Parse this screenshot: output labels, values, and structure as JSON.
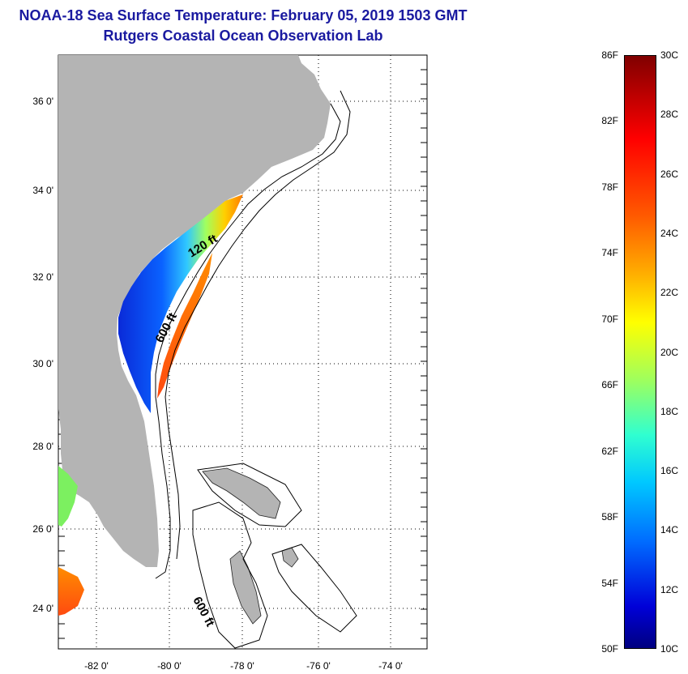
{
  "header": {
    "title_line1": "NOAA-18 Sea Surface Temperature:  February 05, 2019 1503 GMT",
    "title_line2": "Rutgers Coastal Ocean Observation Lab"
  },
  "map": {
    "lat_labels": [
      "36 0'",
      "34 0'",
      "32 0'",
      "30 0'",
      "28 0'",
      "26 0'",
      "24 0'"
    ],
    "lon_labels": [
      "-82 0'",
      "-80 0'",
      "-78 0'",
      "-76 0'",
      "-74 0'"
    ],
    "contour_labels": [
      "120 ft",
      "600 ft",
      "600 ft"
    ]
  },
  "colorbar": {
    "fahrenheit_labels": [
      "86F",
      "82F",
      "78F",
      "74F",
      "70F",
      "66F",
      "62F",
      "58F",
      "54F",
      "50F"
    ],
    "celsius_labels": [
      "30C",
      "28C",
      "26C",
      "24C",
      "22C",
      "20C",
      "18C",
      "16C",
      "14C",
      "12C",
      "10C"
    ]
  },
  "colors": {
    "title": "#1a1aa0",
    "land": "#b4b4b4",
    "ocean": "#ffffff",
    "cold": "#0a1a9a",
    "warm": "#ff5a00"
  }
}
